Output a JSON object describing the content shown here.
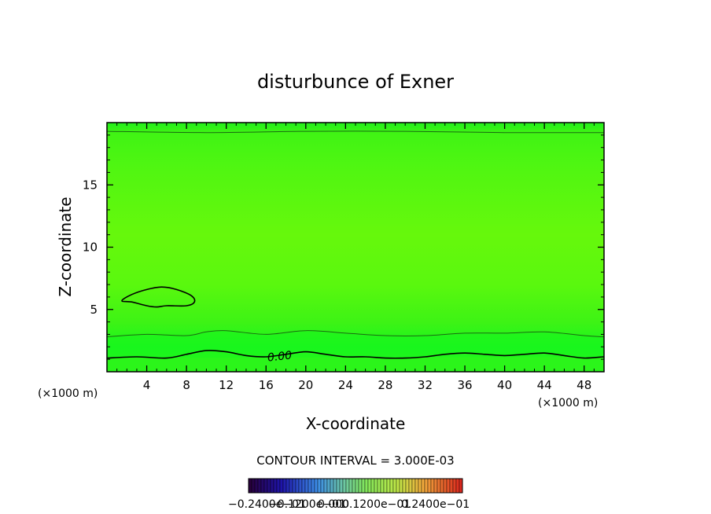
{
  "chart_data": {
    "type": "heatmap",
    "title": "disturbunce of Exner",
    "xlabel": "X-coordinate",
    "ylabel": "Z-coordinate",
    "x_unit": "(×1000 m)",
    "y_unit": "(×1000 m)",
    "xlim": [
      0,
      50
    ],
    "ylim": [
      0,
      20
    ],
    "x_ticks": [
      4,
      8,
      12,
      16,
      20,
      24,
      28,
      32,
      36,
      40,
      44,
      48
    ],
    "x_tick_labels": [
      "4",
      "8",
      "12",
      "16",
      "20",
      "24",
      "28",
      "32",
      "36",
      "40",
      "44",
      "48"
    ],
    "y_ticks": [
      5,
      10,
      15
    ],
    "y_tick_labels": [
      "5",
      "10",
      "15"
    ],
    "contour_interval_text": "CONTOUR INTERVAL = 3.000E-03",
    "contour_label": "0.00",
    "colorbar_labels": [
      "−0.2400e−01",
      "−0.1200e−01",
      "0.000",
      "0.1200e−01",
      "0.2400e−01"
    ],
    "colorbar_range": [
      -0.024,
      0.024
    ],
    "zero_contour": {
      "x": [
        0,
        3,
        6,
        8,
        10,
        12,
        14,
        16,
        18,
        20,
        22,
        24,
        26,
        28,
        30,
        32,
        34,
        36,
        38,
        40,
        42,
        44,
        46,
        48,
        50
      ],
      "z": [
        1.1,
        1.2,
        1.1,
        1.4,
        1.7,
        1.6,
        1.3,
        1.2,
        1.4,
        1.6,
        1.4,
        1.2,
        1.2,
        1.1,
        1.1,
        1.2,
        1.4,
        1.5,
        1.4,
        1.3,
        1.4,
        1.5,
        1.3,
        1.1,
        1.2
      ]
    },
    "upper_contour": {
      "x": [
        0,
        4,
        8,
        10,
        12,
        16,
        20,
        24,
        28,
        32,
        36,
        40,
        44,
        48,
        50
      ],
      "z": [
        2.8,
        3.0,
        2.9,
        3.2,
        3.3,
        3.0,
        3.3,
        3.1,
        2.9,
        2.9,
        3.1,
        3.1,
        3.2,
        2.9,
        2.8
      ]
    },
    "top_contour": {
      "x": [
        0,
        10,
        20,
        30,
        40,
        50
      ],
      "z": [
        19.3,
        19.2,
        19.3,
        19.3,
        19.2,
        19.2
      ]
    },
    "closed_contour": {
      "x": [
        1.5,
        2.5,
        4,
        5.5,
        7,
        8.5,
        8.8,
        8,
        6,
        5,
        4,
        2.5,
        1.5
      ],
      "z": [
        5.7,
        6.2,
        6.6,
        6.8,
        6.6,
        6.1,
        5.6,
        5.3,
        5.3,
        5.2,
        5.3,
        5.6,
        5.7
      ]
    },
    "colors": {
      "band_base": "#2BF51A",
      "band_low": "#19F51D",
      "band_mid": "#5AF80E",
      "band_core": "#66F80C",
      "band_top": "#22F01C",
      "contour": "#000000"
    }
  }
}
